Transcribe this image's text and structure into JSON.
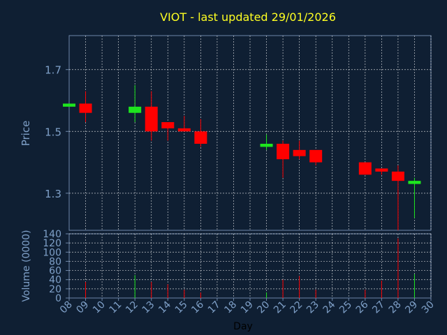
{
  "chart_data": {
    "type": "candlestick",
    "title": "VIOT - last updated 29/01/2026",
    "price_axis": {
      "label": "Price",
      "ylim": [
        1.18,
        1.81
      ],
      "ticks": [
        "1.3",
        "1.5",
        "1.7"
      ],
      "tick_values": [
        1.3,
        1.5,
        1.7
      ]
    },
    "volume_axis": {
      "label": "Volume (0000)",
      "ylim": [
        0,
        140
      ],
      "ticks": [
        "0",
        "20",
        "40",
        "60",
        "80",
        "100",
        "120",
        "140"
      ],
      "tick_values": [
        0,
        20,
        40,
        60,
        80,
        100,
        120,
        140
      ]
    },
    "x_axis": {
      "label": "Day",
      "ticks": [
        "08",
        "09",
        "10",
        "11",
        "12",
        "13",
        "14",
        "15",
        "16",
        "17",
        "18",
        "19",
        "20",
        "21",
        "22",
        "23",
        "24",
        "25",
        "26",
        "27",
        "28",
        "29",
        "30"
      ]
    },
    "grid": true,
    "colors": {
      "background": "#0f1f33",
      "up": "#1ee61e",
      "down": "#ff0000",
      "title": "#ffff22",
      "axis_text": "#7fa0c8",
      "frame": "#6d86a8",
      "grid": "#ffffff"
    },
    "candles": [
      {
        "day": "08",
        "open": 1.58,
        "close": 1.59,
        "high": 1.59,
        "low": 1.58,
        "volume": 0
      },
      {
        "day": "09",
        "open": 1.59,
        "close": 1.56,
        "high": 1.63,
        "low": 1.53,
        "volume": 35
      },
      {
        "day": "12",
        "open": 1.56,
        "close": 1.58,
        "high": 1.65,
        "low": 1.53,
        "volume": 50
      },
      {
        "day": "13",
        "open": 1.58,
        "close": 1.5,
        "high": 1.63,
        "low": 1.47,
        "volume": 35
      },
      {
        "day": "14",
        "open": 1.53,
        "close": 1.51,
        "high": 1.53,
        "low": 1.47,
        "volume": 30
      },
      {
        "day": "15",
        "open": 1.51,
        "close": 1.5,
        "high": 1.55,
        "low": 1.5,
        "volume": 18
      },
      {
        "day": "16",
        "open": 1.5,
        "close": 1.46,
        "high": 1.54,
        "low": 1.45,
        "volume": 12
      },
      {
        "day": "20",
        "open": 1.45,
        "close": 1.46,
        "high": 1.49,
        "low": 1.44,
        "volume": 12
      },
      {
        "day": "21",
        "open": 1.46,
        "close": 1.41,
        "high": 1.47,
        "low": 1.35,
        "volume": 40
      },
      {
        "day": "22",
        "open": 1.44,
        "close": 1.42,
        "high": 1.47,
        "low": 1.41,
        "volume": 48
      },
      {
        "day": "23",
        "open": 1.44,
        "close": 1.4,
        "high": 1.44,
        "low": 1.39,
        "volume": 18
      },
      {
        "day": "26",
        "open": 1.4,
        "close": 1.36,
        "high": 1.4,
        "low": 1.36,
        "volume": 18
      },
      {
        "day": "27",
        "open": 1.38,
        "close": 1.37,
        "high": 1.38,
        "low": 1.36,
        "volume": 38
      },
      {
        "day": "28",
        "open": 1.37,
        "close": 1.34,
        "high": 1.39,
        "low": 1.18,
        "volume": 130
      },
      {
        "day": "29",
        "open": 1.33,
        "close": 1.34,
        "high": 1.35,
        "low": 1.22,
        "volume": 52
      }
    ]
  }
}
